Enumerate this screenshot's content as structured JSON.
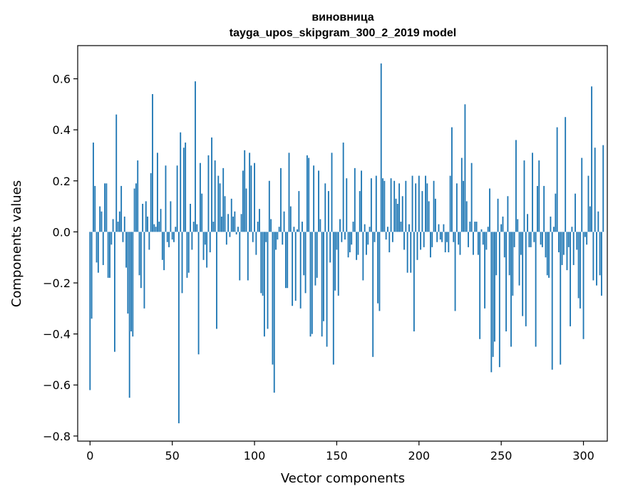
{
  "chart_data": {
    "type": "bar",
    "title": "виновница",
    "subtitle": "tayga_upos_skipgram_300_2_2019 model",
    "xlabel": "Vector components",
    "ylabel": "Components values",
    "xlim": [
      -7.5,
      314.5
    ],
    "ylim": [
      -0.82,
      0.73
    ],
    "xticks": [
      0,
      50,
      100,
      150,
      200,
      250,
      300
    ],
    "yticks": [
      -0.8,
      -0.6,
      -0.4,
      -0.2,
      0.0,
      0.2,
      0.4,
      0.6
    ],
    "ytick_labels": [
      "−0.8",
      "−0.6",
      "−0.4",
      "−0.2",
      "0.0",
      "0.2",
      "0.4",
      "0.6"
    ],
    "xtick_labels": [
      "0",
      "50",
      "100",
      "150",
      "200",
      "250",
      "300"
    ],
    "bar_color": "#1f77b4",
    "grid": false,
    "values": [
      -0.62,
      -0.34,
      0.35,
      0.18,
      -0.12,
      -0.16,
      0.1,
      0.08,
      -0.13,
      0.19,
      0.19,
      -0.18,
      -0.18,
      -0.05,
      0.05,
      -0.47,
      0.46,
      0.04,
      0.08,
      0.18,
      -0.04,
      0.06,
      -0.14,
      -0.32,
      -0.65,
      -0.39,
      -0.41,
      0.17,
      0.19,
      0.28,
      -0.17,
      -0.22,
      0.11,
      -0.3,
      0.12,
      0.06,
      -0.07,
      0.23,
      0.54,
      0.03,
      0.02,
      0.31,
      0.04,
      0.09,
      -0.11,
      -0.15,
      0.26,
      -0.04,
      -0.06,
      0.12,
      -0.03,
      -0.04,
      0.02,
      0.26,
      -0.75,
      0.39,
      -0.24,
      0.33,
      0.35,
      -0.18,
      -0.16,
      0.11,
      -0.07,
      0.04,
      0.59,
      0.03,
      -0.48,
      0.27,
      0.15,
      -0.11,
      -0.05,
      -0.14,
      0.3,
      -0.08,
      0.37,
      0.04,
      0.28,
      -0.38,
      0.22,
      0.19,
      0.06,
      0.25,
      0.14,
      -0.05,
      0.07,
      -0.02,
      0.13,
      0.06,
      0.08,
      -0.01,
      0.02,
      -0.19,
      0.07,
      0.24,
      0.32,
      0.17,
      -0.19,
      0.31,
      0.26,
      -0.04,
      0.27,
      -0.09,
      0.04,
      0.09,
      -0.24,
      -0.25,
      -0.41,
      -0.04,
      -0.38,
      0.2,
      0.05,
      -0.52,
      -0.63,
      -0.07,
      -0.03,
      0.02,
      0.25,
      -0.05,
      0.08,
      -0.22,
      -0.22,
      0.31,
      0.1,
      -0.29,
      0.02,
      -0.27,
      0.01,
      0.16,
      -0.3,
      0.04,
      -0.17,
      -0.24,
      0.3,
      0.29,
      -0.41,
      -0.4,
      0.26,
      -0.21,
      -0.18,
      0.24,
      0.05,
      -0.41,
      -0.35,
      0.19,
      -0.45,
      0.16,
      -0.12,
      0.31,
      -0.52,
      -0.23,
      -0.07,
      -0.25,
      0.05,
      -0.04,
      0.35,
      -0.03,
      0.21,
      -0.1,
      -0.08,
      -0.05,
      0.04,
      0.25,
      -0.11,
      -0.09,
      0.16,
      0.24,
      -0.19,
      0.03,
      -0.09,
      -0.05,
      0.02,
      0.21,
      -0.49,
      -0.04,
      0.22,
      -0.28,
      -0.31,
      0.66,
      0.21,
      0.2,
      -0.03,
      0.02,
      -0.08,
      0.21,
      -0.04,
      0.2,
      0.13,
      0.11,
      0.19,
      0.04,
      0.14,
      -0.07,
      0.2,
      -0.16,
      0.03,
      -0.16,
      0.22,
      -0.39,
      0.19,
      -0.11,
      0.22,
      -0.07,
      0.16,
      -0.06,
      0.22,
      0.19,
      0.12,
      -0.1,
      -0.06,
      0.2,
      0.13,
      -0.04,
      0.03,
      -0.03,
      -0.04,
      0.03,
      -0.08,
      -0.04,
      -0.08,
      0.22,
      0.41,
      -0.04,
      -0.31,
      0.19,
      -0.05,
      -0.09,
      0.29,
      0.2,
      0.5,
      0.12,
      -0.06,
      0.04,
      0.27,
      -0.09,
      0.04,
      0.04,
      -0.09,
      -0.42,
      0.01,
      -0.05,
      -0.3,
      -0.07,
      0.02,
      0.17,
      -0.55,
      -0.49,
      -0.43,
      -0.17,
      0.13,
      -0.53,
      0.03,
      0.06,
      -0.1,
      -0.39,
      0.14,
      -0.17,
      -0.45,
      -0.25,
      -0.06,
      0.36,
      0.05,
      -0.21,
      -0.09,
      -0.33,
      0.28,
      -0.37,
      0.07,
      -0.06,
      -0.06,
      0.31,
      -0.04,
      -0.45,
      0.18,
      0.28,
      -0.05,
      -0.06,
      0.18,
      -0.1,
      -0.17,
      -0.18,
      0.06,
      -0.54,
      0.02,
      0.15,
      0.41,
      -0.08,
      -0.52,
      -0.13,
      -0.09,
      0.45,
      -0.15,
      -0.06,
      -0.37,
      0.02,
      -0.13,
      0.15,
      -0.07,
      -0.26,
      -0.3,
      0.29,
      -0.42,
      -0.02,
      -0.05,
      0.22,
      0.1,
      0.57,
      -0.19,
      0.33,
      -0.21,
      0.08,
      -0.17,
      -0.25,
      0.34
    ]
  }
}
